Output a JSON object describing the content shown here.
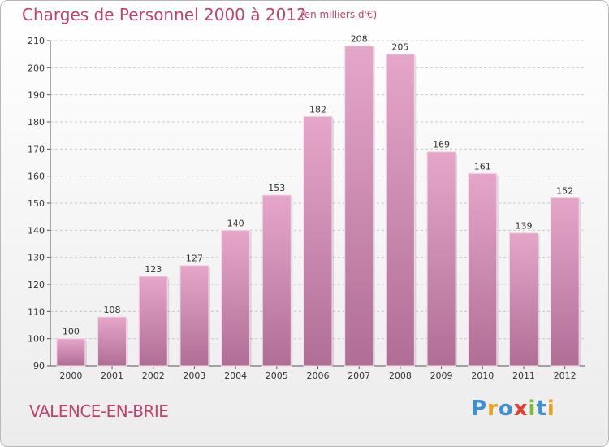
{
  "header": {
    "title": "Charges de Personnel 2000 à 2012",
    "unit": "(en milliers d'€)"
  },
  "footer": {
    "city": "VALENCE-EN-BRIE",
    "logo": "Proxiti"
  },
  "colors": {
    "bar_top": "#e6a6c9",
    "bar_bottom": "#b06e96",
    "title": "#c0406e",
    "logo": [
      "#3d8fd6",
      "#e8a21f",
      "#3d8fd6",
      "#e53c2e",
      "#7dbb3c",
      "#3d8fd6",
      "#e8a21f"
    ]
  },
  "chart_data": {
    "type": "bar",
    "title": "Charges de Personnel 2000 à 2012",
    "subtitle": "(en milliers d'€)",
    "categories": [
      "2000",
      "2001",
      "2002",
      "2003",
      "2004",
      "2005",
      "2006",
      "2007",
      "2008",
      "2009",
      "2010",
      "2011",
      "2012"
    ],
    "values": [
      100,
      108,
      123,
      127,
      140,
      153,
      182,
      208,
      205,
      169,
      161,
      139,
      152
    ],
    "ylim": [
      90,
      210
    ],
    "yticks": [
      90,
      100,
      110,
      120,
      130,
      140,
      150,
      160,
      170,
      180,
      190,
      200,
      210
    ],
    "grid": true,
    "legend": "none"
  }
}
